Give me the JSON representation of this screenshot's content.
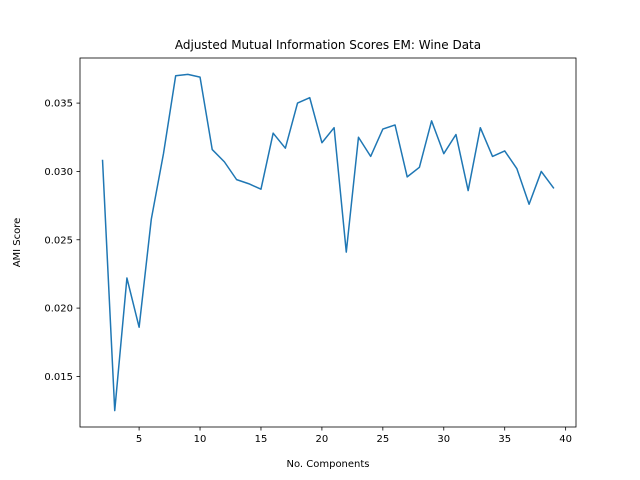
{
  "chart_data": {
    "type": "line",
    "title": "Adjusted Mutual Information Scores EM: Wine Data",
    "xlabel": "No. Components",
    "ylabel": "AMI Score",
    "xlim": [
      0.15,
      40.85
    ],
    "ylim": [
      0.0113,
      0.0383
    ],
    "xticks": [
      5,
      10,
      15,
      20,
      25,
      30,
      35,
      40
    ],
    "xtick_labels": [
      "5",
      "10",
      "15",
      "20",
      "25",
      "30",
      "35",
      "40"
    ],
    "yticks": [
      0.015,
      0.02,
      0.025,
      0.03,
      0.035
    ],
    "ytick_labels": [
      "0.015",
      "0.020",
      "0.025",
      "0.030",
      "0.035"
    ],
    "grid": false,
    "series": [
      {
        "color": "#1f77b4",
        "x": [
          2,
          3,
          4,
          5,
          6,
          7,
          8,
          9,
          10,
          11,
          12,
          13,
          14,
          15,
          16,
          17,
          18,
          19,
          20,
          21,
          22,
          23,
          24,
          25,
          26,
          27,
          28,
          29,
          30,
          31,
          32,
          33,
          34,
          35,
          36,
          37,
          38,
          39
        ],
        "values": [
          0.0308,
          0.0125,
          0.0222,
          0.0186,
          0.0265,
          0.0313,
          0.037,
          0.0371,
          0.0369,
          0.0316,
          0.0307,
          0.0294,
          0.0291,
          0.0287,
          0.0328,
          0.0317,
          0.035,
          0.0354,
          0.0321,
          0.0332,
          0.0241,
          0.0325,
          0.0311,
          0.0331,
          0.0334,
          0.0296,
          0.0303,
          0.0337,
          0.0313,
          0.0327,
          0.0286,
          0.0332,
          0.0311,
          0.0315,
          0.0302,
          0.0276,
          0.03,
          0.0288
        ]
      }
    ]
  }
}
